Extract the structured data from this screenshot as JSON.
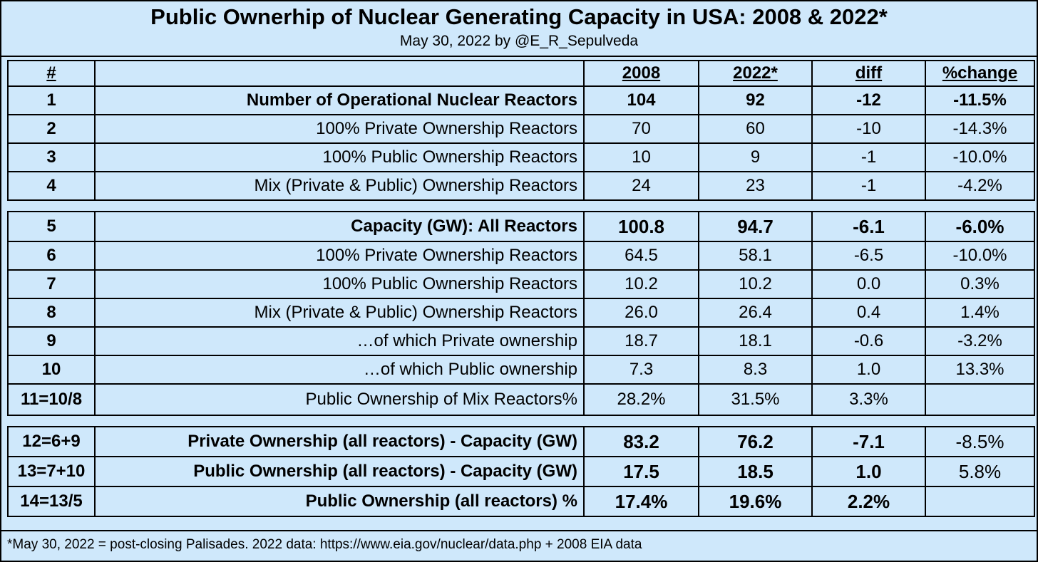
{
  "title": "Public Ownerhip of Nuclear Generating Capacity in USA: 2008 & 2022*",
  "subtitle": "May 30, 2022 by @E_R_Sepulveda",
  "footnote": "*May 30, 2022 = post-closing Palisades. 2022 data: https://www.eia.gov/nuclear/data.php + 2008 EIA data",
  "chart_data": {
    "type": "table",
    "title": "Public Ownerhip of Nuclear Generating Capacity in USA: 2008 & 2022*",
    "subtitle": "May 30, 2022 by @E_R_Sepulveda",
    "columns": [
      "#",
      "",
      "2008",
      "2022*",
      "diff",
      "%change"
    ],
    "rows": [
      {
        "num": "1",
        "label": "Number of Operational Nuclear Reactors",
        "v2008": "104",
        "v2022": "92",
        "diff": "-12",
        "pct": "-11.5%"
      },
      {
        "num": "2",
        "label": "100% Private Ownership Reactors",
        "v2008": "70",
        "v2022": "60",
        "diff": "-10",
        "pct": "-14.3%"
      },
      {
        "num": "3",
        "label": "100% Public Ownership Reactors",
        "v2008": "10",
        "v2022": "9",
        "diff": "-1",
        "pct": "-10.0%"
      },
      {
        "num": "4",
        "label": "Mix (Private & Public) Ownership Reactors",
        "v2008": "24",
        "v2022": "23",
        "diff": "-1",
        "pct": "-4.2%"
      },
      {
        "num": "5",
        "label": "Capacity (GW): All Reactors",
        "v2008": "100.8",
        "v2022": "94.7",
        "diff": "-6.1",
        "pct": "-6.0%"
      },
      {
        "num": "6",
        "label": "100% Private Ownership Reactors",
        "v2008": "64.5",
        "v2022": "58.1",
        "diff": "-6.5",
        "pct": "-10.0%"
      },
      {
        "num": "7",
        "label": "100% Public Ownership Reactors",
        "v2008": "10.2",
        "v2022": "10.2",
        "diff": "0.0",
        "pct": "0.3%"
      },
      {
        "num": "8",
        "label": "Mix (Private & Public) Ownership Reactors",
        "v2008": "26.0",
        "v2022": "26.4",
        "diff": "0.4",
        "pct": "1.4%"
      },
      {
        "num": "9",
        "label": "…of which Private ownership",
        "v2008": "18.7",
        "v2022": "18.1",
        "diff": "-0.6",
        "pct": "-3.2%"
      },
      {
        "num": "10",
        "label": "…of which Public ownership",
        "v2008": "7.3",
        "v2022": "8.3",
        "diff": "1.0",
        "pct": "13.3%"
      },
      {
        "num": "11=10/8",
        "label": "Public Ownership of Mix Reactors%",
        "v2008": "28.2%",
        "v2022": "31.5%",
        "diff": "3.3%",
        "pct": ""
      },
      {
        "num": "12=6+9",
        "label": "Private Ownership (all reactors) - Capacity (GW)",
        "v2008": "83.2",
        "v2022": "76.2",
        "diff": "-7.1",
        "pct": "-8.5%"
      },
      {
        "num": "13=7+10",
        "label": "Public Ownership (all reactors) - Capacity (GW)",
        "v2008": "17.5",
        "v2022": "18.5",
        "diff": "1.0",
        "pct": "5.8%"
      },
      {
        "num": "14=13/5",
        "label": "Public Ownership (all reactors) %",
        "v2008": "17.4%",
        "v2022": "19.6%",
        "diff": "2.2%",
        "pct": ""
      }
    ]
  }
}
